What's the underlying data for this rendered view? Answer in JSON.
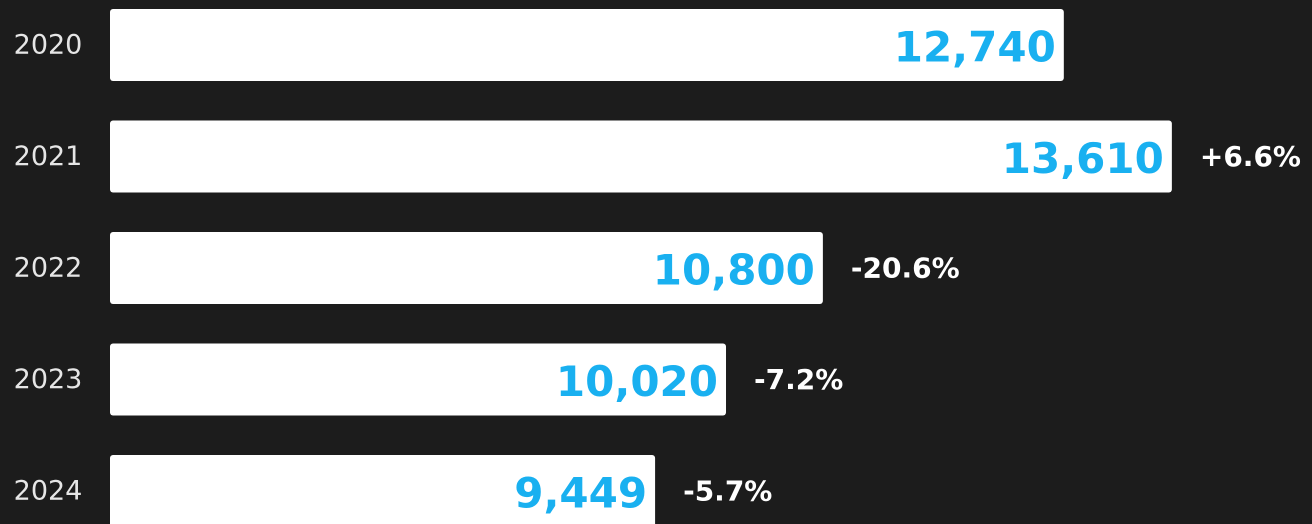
{
  "chart_data": {
    "type": "bar",
    "orientation": "horizontal",
    "categories": [
      "2020",
      "2021",
      "2022",
      "2023",
      "2024"
    ],
    "values": [
      12740,
      13610,
      10800,
      10020,
      9449
    ],
    "value_labels": [
      "12,740",
      "13,610",
      "10,800",
      "10,020",
      "9,449"
    ],
    "change_labels": [
      null,
      "+6.6%",
      "-20.6%",
      "-7.2%",
      "-5.7%"
    ],
    "color": "#ffffff",
    "label_color": "#19b0f0",
    "xlim": [
      5060,
      15000
    ]
  }
}
